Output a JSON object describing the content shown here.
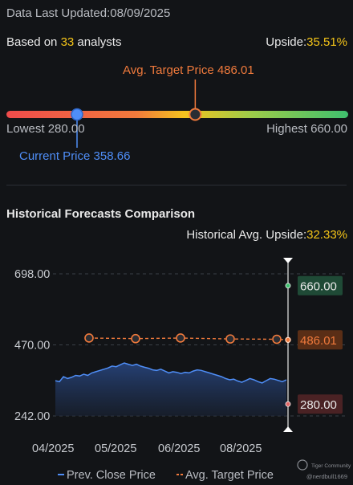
{
  "header": {
    "last_updated": "Data Last Updated:08/09/2025",
    "based_on_prefix": "Based on ",
    "analyst_count": "33",
    "based_on_suffix": " analysts",
    "upside_label": "Upside:",
    "upside_value": "35.51%"
  },
  "target_range": {
    "avg_label": "Avg. Target Price 486.01",
    "lowest_label": "Lowest 280.00",
    "highest_label": "Highest 660.00",
    "current_label": "Current Price 358.66",
    "low": 280.0,
    "high": 660.0,
    "avg": 486.01,
    "current": 358.66
  },
  "historical": {
    "title": "Historical Forecasts Comparison",
    "avg_upside_label": "Historical Avg. Upside:",
    "avg_upside_value": "32.33%"
  },
  "chart_data": {
    "type": "line",
    "y_ticks": [
      "698.00",
      "470.00",
      "242.00"
    ],
    "ylim": [
      242,
      698
    ],
    "x_ticks": [
      "04/2025",
      "05/2025",
      "06/2025",
      "08/2025"
    ],
    "series": [
      {
        "name": "Prev. Close Price",
        "color": "#4f8ef7",
        "values": [
          355,
          352,
          368,
          362,
          366,
          372,
          370,
          376,
          372,
          380,
          384,
          388,
          392,
          396,
          402,
          400,
          406,
          412,
          408,
          404,
          408,
          402,
          398,
          395,
          390,
          388,
          392,
          386,
          380,
          384,
          382,
          378,
          382,
          380,
          386,
          390,
          388,
          384,
          380,
          376,
          372,
          368,
          362,
          358,
          360,
          354,
          350,
          356,
          362,
          358,
          352,
          348,
          355,
          362,
          360,
          356,
          352,
          358
        ]
      },
      {
        "name": "Avg. Target Price",
        "color": "#f07a3c",
        "values": [
          492,
          490,
          492,
          489,
          488,
          486.01
        ]
      }
    ],
    "right_labels": {
      "high": "660.00",
      "avg": "486.01",
      "low": "280.00"
    },
    "legend": [
      "Prev. Close Price",
      "Avg. Target Price"
    ]
  },
  "watermark": {
    "brand": "Tiger Community",
    "user": "@nerdbull1669"
  },
  "colors": {
    "background": "#121417",
    "price_line": "#4f8ef7",
    "target_line": "#f07a3c",
    "high_box": "#1f4a36",
    "low_box": "#4a2224",
    "avg_box": "#5a2e16"
  }
}
